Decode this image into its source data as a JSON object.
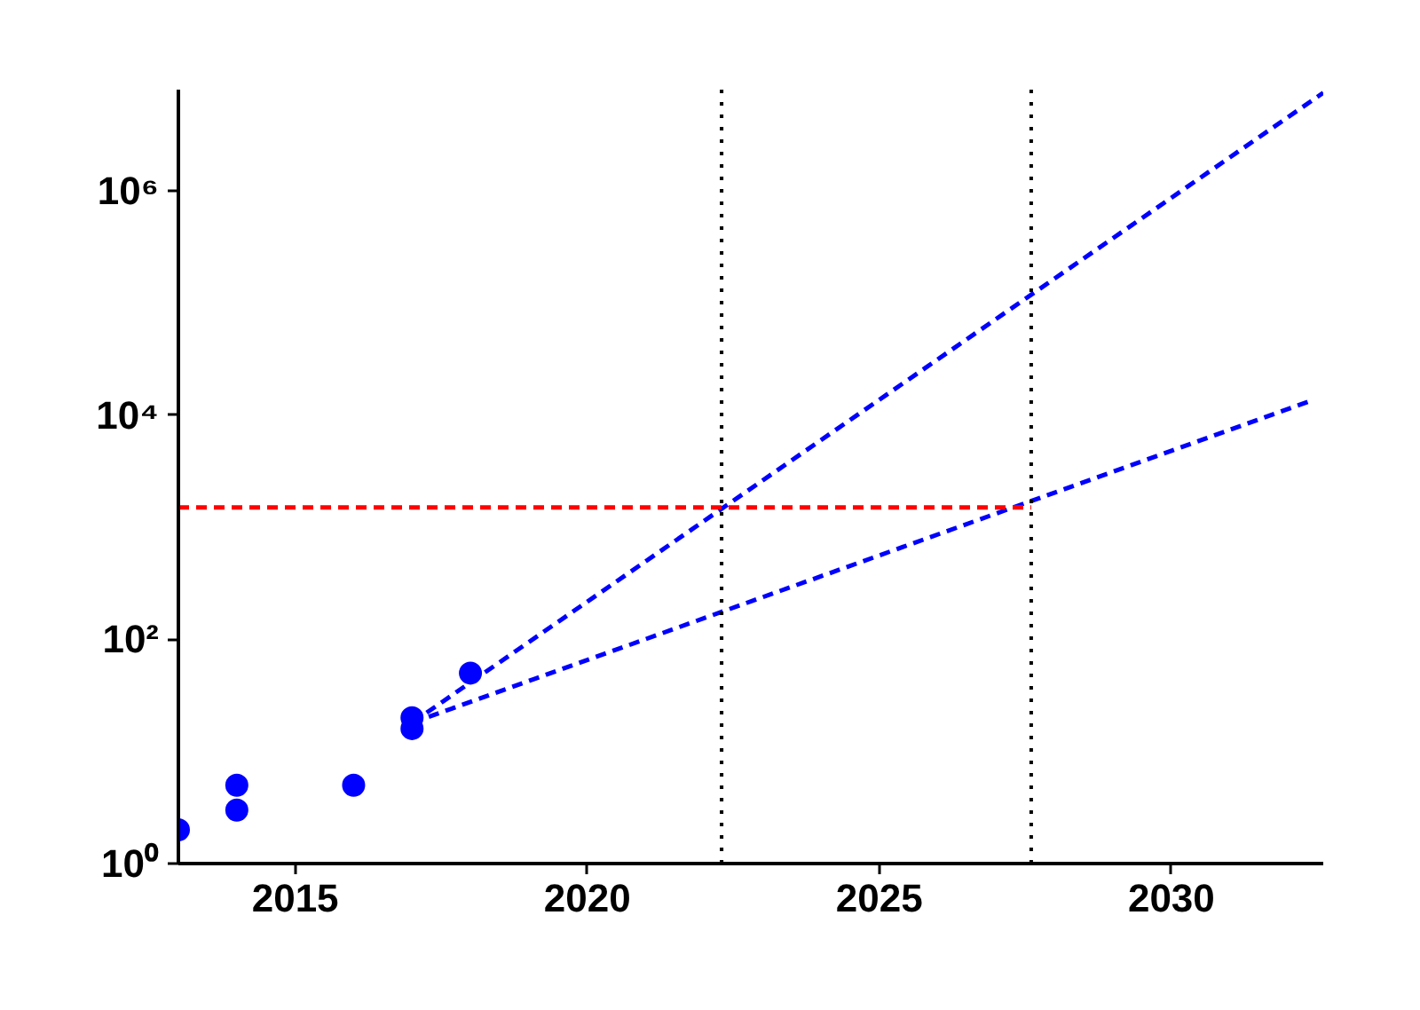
{
  "chart_data": {
    "type": "scatter",
    "log": "y",
    "grid": false,
    "xlim": [
      2013,
      2032.6
    ],
    "xticks": [
      2015,
      2020,
      2025,
      2030
    ],
    "ylim": [
      1,
      8000000
    ],
    "yticks": [
      {
        "value": 1,
        "label": "10⁰"
      },
      {
        "value": 100,
        "label": "10²"
      },
      {
        "value": 10000,
        "label": "10⁴"
      },
      {
        "value": 1000000,
        "label": "10⁶"
      }
    ],
    "series": [
      {
        "marker": "circle",
        "color": "#0000ff",
        "x": [
          2013,
          2014,
          2014,
          2016,
          2017,
          2017,
          2018
        ],
        "values": [
          2,
          5,
          3,
          5,
          20,
          16,
          50
        ]
      },
      {
        "type": "line",
        "line_style": "dashed",
        "color": "#0000ff",
        "x": [
          2017,
          2032.6
        ],
        "values": [
          18,
          7500000
        ]
      },
      {
        "type": "line",
        "line_style": "dashed",
        "color": "#0000ff",
        "x": [
          2017,
          2032.4
        ],
        "values": [
          18,
          13500
        ]
      },
      {
        "type": "line",
        "line_style": "dashed",
        "color": "#ff0000",
        "x": [
          2013,
          2027.6
        ],
        "values": [
          1500,
          1500
        ]
      }
    ],
    "ref_lines": [
      {
        "axis": "x",
        "value": 2022.3,
        "color": "#000000",
        "line_style": "dotted"
      },
      {
        "axis": "x",
        "value": 2027.6,
        "color": "#000000",
        "line_style": "dotted"
      }
    ]
  }
}
